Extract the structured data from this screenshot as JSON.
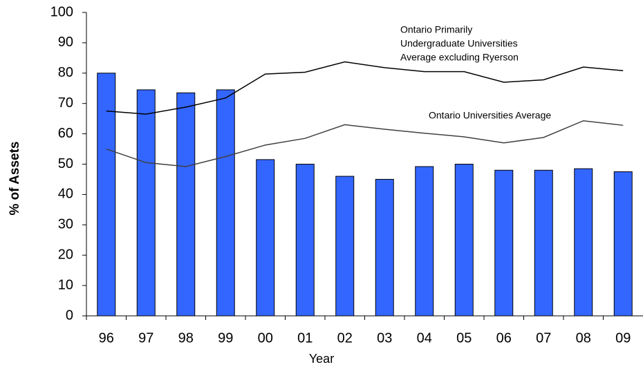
{
  "chart_data": {
    "type": "bar",
    "x_label": "Year",
    "y_label": "% of Assets",
    "categories": [
      "96",
      "97",
      "98",
      "99",
      "00",
      "01",
      "02",
      "03",
      "04",
      "05",
      "06",
      "07",
      "08",
      "09"
    ],
    "values": [
      80,
      74.5,
      73.5,
      74.5,
      51.5,
      50,
      46,
      45,
      49.2,
      50,
      48,
      48,
      48.5,
      47.5
    ],
    "color": "#3366ff",
    "lines": [
      {
        "color": "#000000",
        "values": [
          67.5,
          66.5,
          68.8,
          71.8,
          79.7,
          80.3,
          83.7,
          81.8,
          80.5,
          80.5,
          77,
          77.8,
          82,
          80.8
        ]
      },
      {
        "color": "#404040",
        "values": [
          55,
          50.5,
          49.2,
          52.5,
          56.3,
          58.5,
          63,
          61.5,
          60.2,
          59,
          57,
          58.8,
          64.3,
          62.8
        ]
      }
    ],
    "annotations": [
      {
        "lines": [
          "Ontario Primarily",
          "Undergraduate Universities",
          "Average excluding Ryerson"
        ]
      },
      {
        "lines": [
          "Ontario Universities Average"
        ]
      }
    ],
    "ylim": [
      0,
      100
    ],
    "yticks": [
      0,
      10,
      20,
      30,
      40,
      50,
      60,
      70,
      80,
      90,
      100
    ],
    "grid": false
  }
}
